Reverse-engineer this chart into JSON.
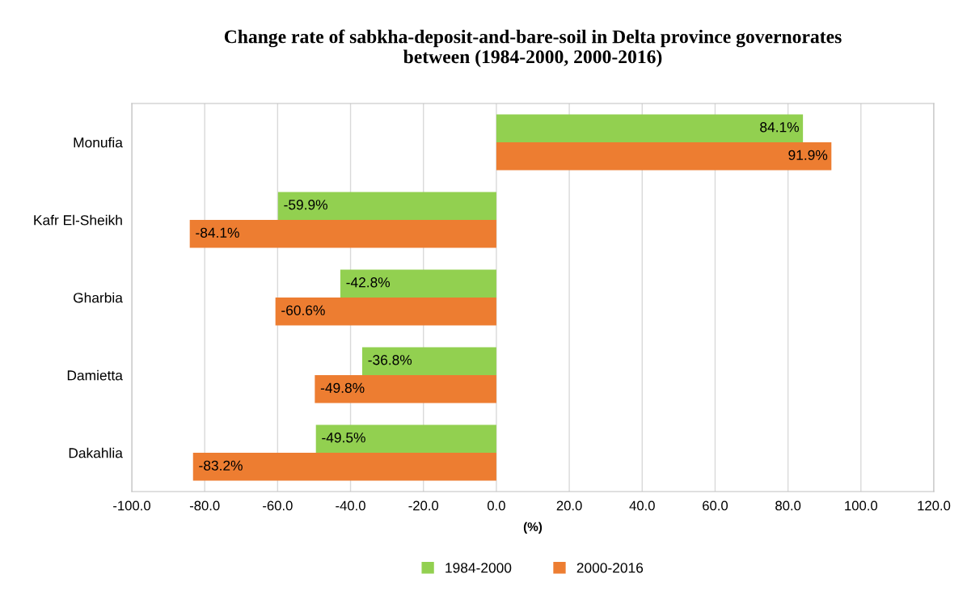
{
  "chart_data": {
    "type": "bar",
    "orientation": "horizontal",
    "title": "Change rate of sabkha-deposit-and-bare-soil in Delta province governorates\nbetween (1984-2000, 2000-2016)",
    "xlabel": "(%)",
    "categories": [
      "Monufia",
      "Kafr El-Sheikh",
      "Gharbia",
      "Damietta",
      "Dakahlia"
    ],
    "series": [
      {
        "name": "1984-2000",
        "color": "#92d050",
        "values": [
          84.1,
          -59.9,
          -42.8,
          -36.8,
          -49.5
        ],
        "value_labels": [
          "84.1%",
          "-59.9%",
          "-42.8%",
          "-36.8%",
          "-49.5%"
        ]
      },
      {
        "name": "2000-2016",
        "color": "#ed7d31",
        "values": [
          91.9,
          -84.1,
          -60.6,
          -49.8,
          -83.2
        ],
        "value_labels": [
          "91.9%",
          "-84.1%",
          "-60.6%",
          "-49.8%",
          "-83.2%"
        ]
      }
    ],
    "xlim": [
      -100,
      120
    ],
    "xticks": [
      {
        "value": -100,
        "label": "-100.0"
      },
      {
        "value": -80,
        "label": "-80.0"
      },
      {
        "value": -60,
        "label": "-60.0"
      },
      {
        "value": -40,
        "label": "-40.0"
      },
      {
        "value": -20,
        "label": "-20.0"
      },
      {
        "value": 0,
        "label": "0.0"
      },
      {
        "value": 20,
        "label": "20.0"
      },
      {
        "value": 40,
        "label": "40.0"
      },
      {
        "value": 60,
        "label": "60.0"
      },
      {
        "value": 80,
        "label": "80.0"
      },
      {
        "value": 100,
        "label": "100.0"
      },
      {
        "value": 120,
        "label": "120.0"
      }
    ],
    "grid": "x",
    "legend": "bottom"
  }
}
